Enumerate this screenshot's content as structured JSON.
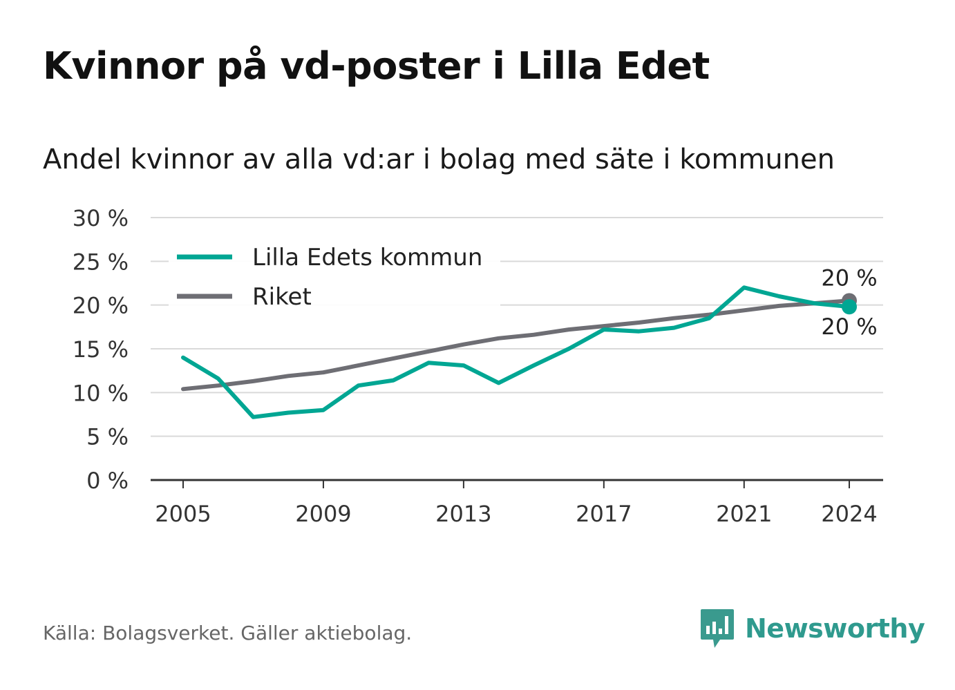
{
  "title": "Kvinnor på vd-poster i Lilla Edet",
  "subtitle": "Andel kvinnor av alla vd:ar i bolag med säte i kommunen",
  "source": "Källa: Bolagsverket. Gäller aktiebolag.",
  "brand": {
    "name": "Newsworthy",
    "icon": "newsworthy-logo-icon",
    "color": "#2f9a8e"
  },
  "chart_data": {
    "type": "line",
    "x": [
      2005,
      2006,
      2007,
      2008,
      2009,
      2010,
      2011,
      2012,
      2013,
      2014,
      2015,
      2016,
      2017,
      2018,
      2019,
      2020,
      2021,
      2022,
      2023,
      2024
    ],
    "series": [
      {
        "name": "Lilla Edets kommun",
        "color": "#00a693",
        "values": [
          14.0,
          11.6,
          7.2,
          7.7,
          8.0,
          10.8,
          11.4,
          13.4,
          13.1,
          11.1,
          13.1,
          15.0,
          17.2,
          17.0,
          17.4,
          18.5,
          22.0,
          21.0,
          20.2,
          19.8
        ],
        "end_label": "20 %"
      },
      {
        "name": "Riket",
        "color": "#6e6e74",
        "values": [
          10.4,
          10.8,
          11.3,
          11.9,
          12.3,
          13.1,
          13.9,
          14.7,
          15.5,
          16.2,
          16.6,
          17.2,
          17.6,
          18.0,
          18.5,
          18.9,
          19.4,
          19.9,
          20.2,
          20.5
        ],
        "end_label": "20 %"
      }
    ],
    "y_ticks": [
      {
        "value": 0,
        "label": "0 %"
      },
      {
        "value": 5,
        "label": "5 %"
      },
      {
        "value": 10,
        "label": "10 %"
      },
      {
        "value": 15,
        "label": "15 %"
      },
      {
        "value": 20,
        "label": "20 %"
      },
      {
        "value": 25,
        "label": "25 %"
      },
      {
        "value": 30,
        "label": "30 %"
      }
    ],
    "x_ticks": [
      {
        "value": 2005,
        "label": "2005"
      },
      {
        "value": 2009,
        "label": "2009"
      },
      {
        "value": 2013,
        "label": "2013"
      },
      {
        "value": 2017,
        "label": "2017"
      },
      {
        "value": 2021,
        "label": "2021"
      },
      {
        "value": 2024,
        "label": "2024"
      }
    ],
    "ylim": [
      0,
      30
    ],
    "xlim": [
      2005,
      2024
    ],
    "grid": "horizontal",
    "legend_position": "top-left"
  }
}
